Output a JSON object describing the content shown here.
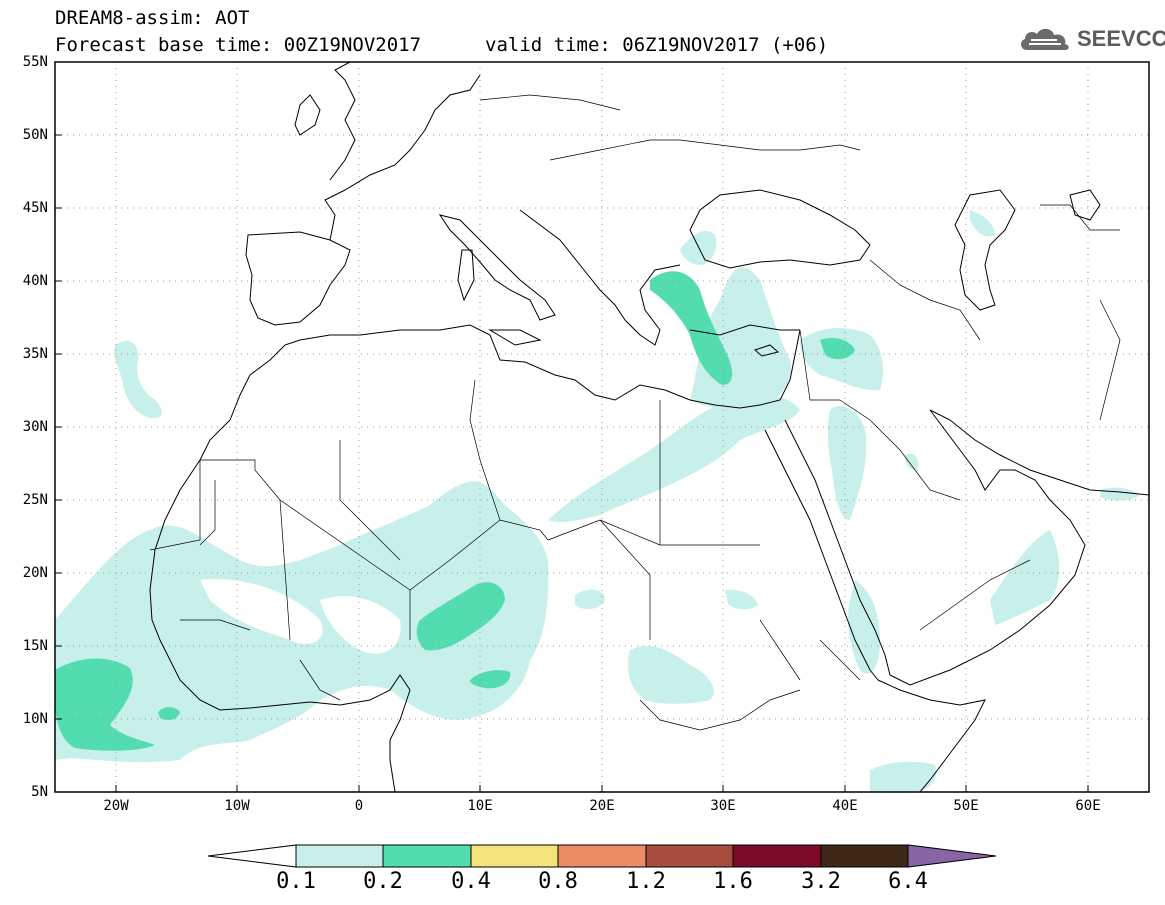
{
  "header": {
    "title": "DREAM8-assim: AOT",
    "base_time": "Forecast base time: 00Z19NOV2017",
    "valid_time": "valid time: 06Z19NOV2017 (+06)"
  },
  "logo": {
    "text": "SEEVCCC",
    "icon": "cloud-icon"
  },
  "map": {
    "lat_range": [
      5,
      55
    ],
    "lon_range": [
      -25,
      65
    ],
    "lat_labels": [
      "55N",
      "50N",
      "45N",
      "40N",
      "35N",
      "30N",
      "25N",
      "20N",
      "15N",
      "10N",
      "5N"
    ],
    "lon_labels": [
      "20W",
      "10W",
      "0",
      "10E",
      "20E",
      "30E",
      "40E",
      "50E",
      "60E"
    ],
    "colors": {
      "frame": "#000000",
      "grid": "#999999",
      "coast": "#000000"
    }
  },
  "colorbar": {
    "labels": [
      "0.1",
      "0.2",
      "0.4",
      "0.8",
      "1.2",
      "1.6",
      "3.2",
      "6.4"
    ],
    "colors": [
      "#ffffff",
      "#c8f0ea",
      "#52dcb0",
      "#f5e47a",
      "#ea8c64",
      "#a84c3e",
      "#7c0a28",
      "#3e2818",
      "#8866a6"
    ]
  }
}
